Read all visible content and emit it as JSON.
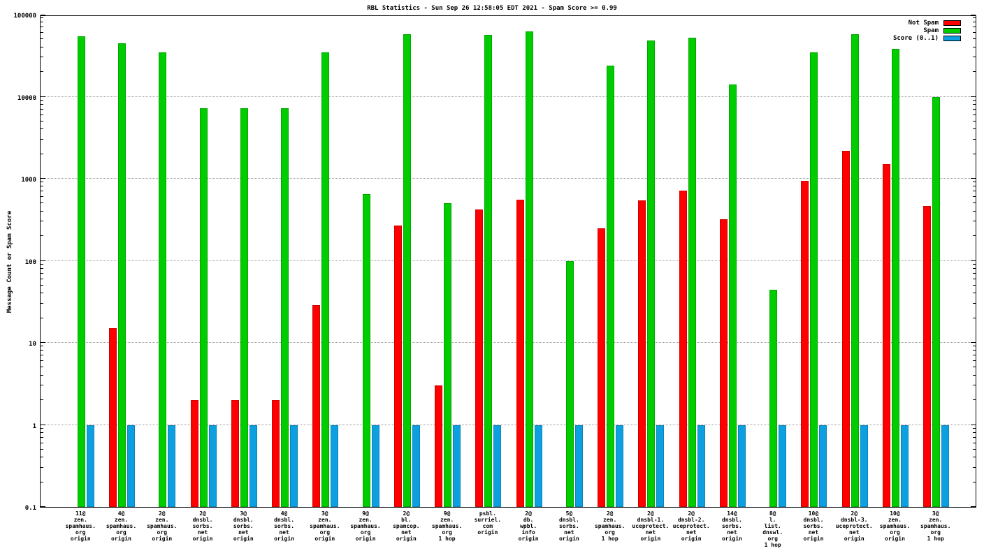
{
  "title": "RBL Statistics - Sun Sep 26 12:58:05 EDT 2021 - Spam Score >= 0.99",
  "ylabel": "Message Count or Spam Score",
  "legend": {
    "position": "top-right",
    "items": [
      {
        "label": "Not Spam",
        "color": "#ff0000"
      },
      {
        "label": "Spam",
        "color": "#00cc00"
      },
      {
        "label": "Score (0..1)",
        "color": "#0da0e0"
      }
    ]
  },
  "chart_data": {
    "type": "bar",
    "y_scale": "log",
    "ylim": [
      0.1,
      100000
    ],
    "yticks": [
      "0.1",
      "1",
      "10",
      "100",
      "1000",
      "10000",
      "100000"
    ],
    "grid": "horizontal-dotted",
    "legend_position": "top-right",
    "title": "RBL Statistics - Sun Sep 26 12:58:05 EDT 2021 - Spam Score >= 0.99",
    "xlabel": "",
    "ylabel": "Message Count or Spam Score",
    "categories": [
      "11@\nzen.\nspamhaus.\norg\norigin",
      "4@\nzen.\nspamhaus.\norg\norigin",
      "2@\nzen.\nspamhaus.\norg\norigin",
      "2@\ndnsbl.\nsorbs.\nnet\norigin",
      "3@\ndnsbl.\nsorbs.\nnet\norigin",
      "4@\ndnsbl.\nsorbs.\nnet\norigin",
      "3@\nzen.\nspamhaus.\norg\norigin",
      "9@\nzen.\nspamhaus.\norg\norigin",
      "2@\nbl.\nspamcop.\nnet\norigin",
      "9@\nzen.\nspamhaus.\norg\n1 hop",
      "psbl.\nsurriel.\ncom\norigin",
      "2@\ndb.\nwpbl.\ninfo\norigin",
      "5@\ndnsbl.\nsorbs.\nnet\norigin",
      "2@\nzen.\nspamhaus.\norg\n1 hop",
      "2@\ndnsbl-1.\nuceprotect.\nnet\norigin",
      "2@\ndnsbl-2.\nuceprotect.\nnet\norigin",
      "14@\ndnsbl.\nsorbs.\nnet\norigin",
      "8@\nl.\nlist.\ndnswl.\norg\n1 hop",
      "10@\ndnsbl.\nsorbs.\nnet\norigin",
      "2@\ndnsbl-3.\nuceprotect.\nnet\norigin",
      "10@\nzen.\nspamhaus.\norg\norigin",
      "3@\nzen.\nspamhaus.\norg\n1 hop"
    ],
    "series": [
      {
        "name": "Not Spam",
        "color": "#ff0000",
        "values": [
          0,
          15,
          0,
          2,
          2,
          2,
          29,
          0,
          270,
          3,
          420,
          560,
          0,
          250,
          550,
          720,
          320,
          0,
          950,
          2200,
          1500,
          470
        ]
      },
      {
        "name": "Spam",
        "color": "#00cc00",
        "values": [
          55000,
          45000,
          35000,
          7200,
          7200,
          7200,
          35000,
          650,
          58000,
          500,
          57000,
          62000,
          100,
          24000,
          48000,
          52000,
          14000,
          44,
          35000,
          58000,
          38000,
          10000
        ]
      },
      {
        "name": "Score (0..1)",
        "color": "#0da0e0",
        "values": [
          1,
          1,
          1,
          1,
          1,
          1,
          1,
          1,
          1,
          1,
          1,
          1,
          1,
          1,
          1,
          1,
          1,
          1,
          1,
          1,
          1,
          1
        ]
      }
    ]
  }
}
